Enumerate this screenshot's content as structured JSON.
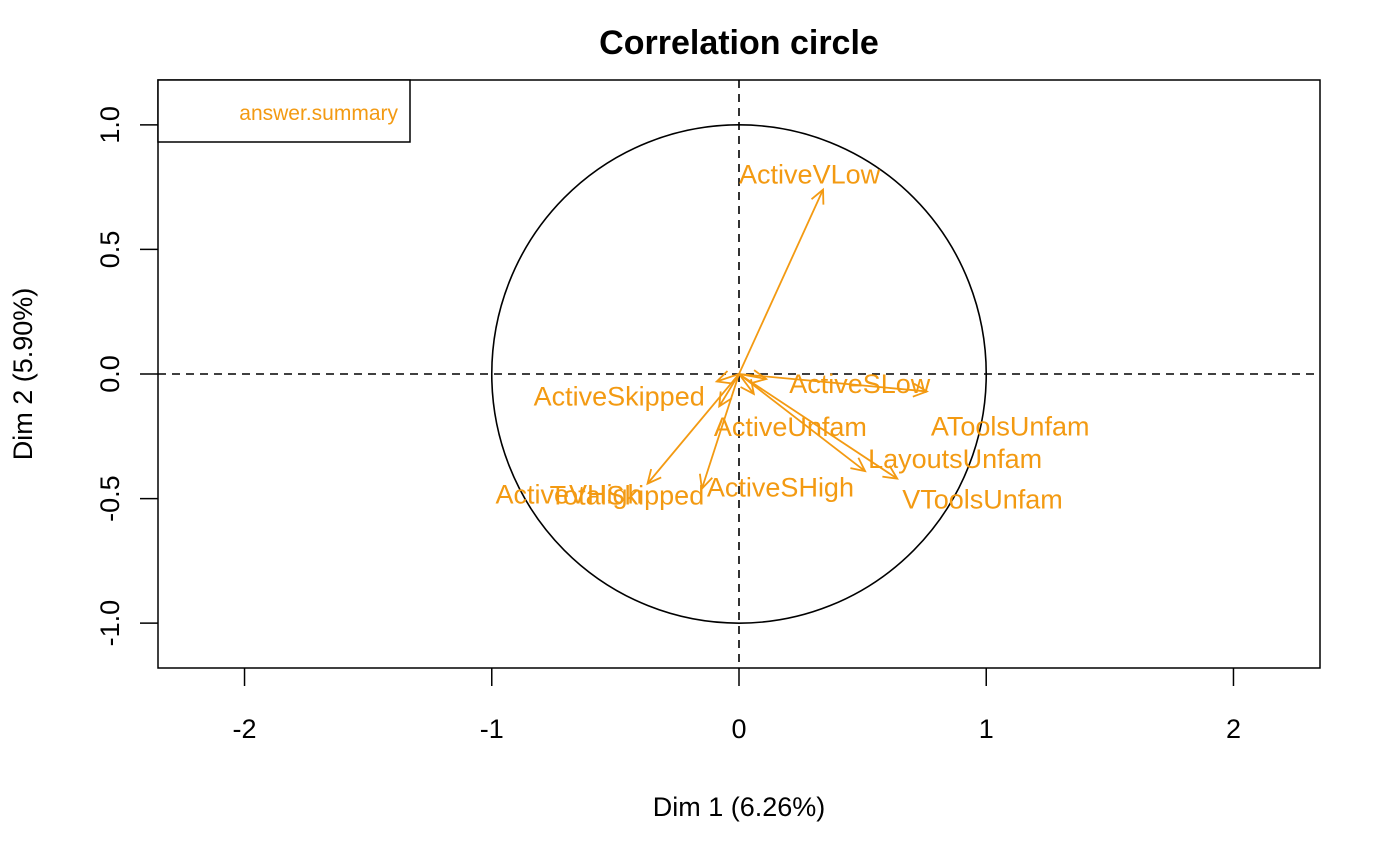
{
  "chart_data": {
    "type": "scatter",
    "title": "Correlation circle",
    "xlabel": "Dim 1 (6.26%)",
    "ylabel": "Dim 2 (5.90%)",
    "xlim": [
      -2.35,
      2.35
    ],
    "ylim": [
      -1.18,
      1.18
    ],
    "x_ticks": [
      {
        "value": -2,
        "label": "-2"
      },
      {
        "value": -1,
        "label": "-1"
      },
      {
        "value": 0,
        "label": "0"
      },
      {
        "value": 1,
        "label": "1"
      },
      {
        "value": 2,
        "label": "2"
      }
    ],
    "y_ticks": [
      {
        "value": -1.0,
        "label": "-1.0"
      },
      {
        "value": -0.5,
        "label": "-0.5"
      },
      {
        "value": 0.0,
        "label": "0.0"
      },
      {
        "value": 0.5,
        "label": "0.5"
      },
      {
        "value": 1.0,
        "label": "1.0"
      }
    ],
    "unit_circle_radius": 1,
    "reference_lines": {
      "x0": true,
      "y0": true,
      "style": "dashed"
    },
    "grid": false,
    "legend": {
      "position": "top-left",
      "entries": [
        "answer.summary"
      ]
    },
    "arrow_color": "#F39A12",
    "variables": [
      {
        "name": "ActiveVLow",
        "x": 0.34,
        "y": 0.74
      },
      {
        "name": "ActiveSLow",
        "x": 0.11,
        "y": -0.02
      },
      {
        "name": "AToolsUnfam",
        "x": 0.76,
        "y": -0.07
      },
      {
        "name": "ActiveUnfam",
        "x": 0.06,
        "y": -0.08
      },
      {
        "name": "LayoutsUnfam",
        "x": 0.51,
        "y": -0.39
      },
      {
        "name": "VToolsUnfam",
        "x": 0.64,
        "y": -0.42
      },
      {
        "name": "ActiveSHigh",
        "x": -0.15,
        "y": -0.46
      },
      {
        "name": "ActiveSkipped",
        "x": -0.09,
        "y": -0.03
      },
      {
        "name": "TotalSkipped",
        "x": -0.08,
        "y": -0.13
      },
      {
        "name": "ActiveVHigh",
        "x": -0.37,
        "y": -0.44
      }
    ]
  }
}
